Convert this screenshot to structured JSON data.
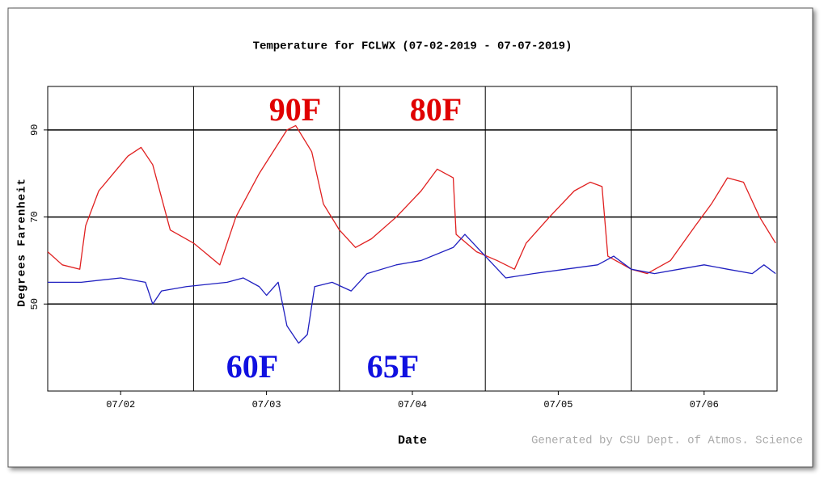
{
  "chart_data": {
    "type": "line",
    "title": "Temperature for FCLWX (07-02-2019 - 07-07-2019)",
    "y_label": "Degrees Farenheit",
    "x_label": "Date",
    "credit": "Generated by CSU Dept. of Atmos. Science",
    "xlim": [
      0,
      5
    ],
    "xticks": [
      {
        "value": 0.5,
        "label": "07/02"
      },
      {
        "value": 1.5,
        "label": "07/03"
      },
      {
        "value": 2.5,
        "label": "07/04"
      },
      {
        "value": 3.5,
        "label": "07/05"
      },
      {
        "value": 4.5,
        "label": "07/06"
      }
    ],
    "x_gridlines": [
      1,
      2,
      3,
      4
    ],
    "ylim": [
      30,
      100
    ],
    "yticks": [
      50,
      70,
      90
    ],
    "grid": true,
    "series": [
      {
        "color": "#e02020",
        "x": [
          0,
          0.1,
          0.22,
          0.26,
          0.35,
          0.45,
          0.55,
          0.64,
          0.72,
          0.84,
          1.0,
          1.18,
          1.29,
          1.45,
          1.64,
          1.7,
          1.81,
          1.89,
          2.0,
          2.11,
          2.22,
          2.39,
          2.56,
          2.67,
          2.78,
          2.8,
          2.94,
          3.08,
          3.2,
          3.28,
          3.44,
          3.61,
          3.72,
          3.8,
          3.84,
          4.0,
          4.11,
          4.27,
          4.44,
          4.55,
          4.66,
          4.77,
          4.88,
          4.99
        ],
        "values": [
          62,
          59,
          58,
          68,
          76,
          80,
          84,
          86,
          82,
          67,
          64,
          59,
          70,
          80,
          90,
          91,
          85,
          73,
          67,
          63,
          65,
          70,
          76,
          81,
          79,
          66,
          62,
          60,
          58,
          64,
          70,
          76,
          78,
          77,
          61,
          58,
          57,
          60,
          68,
          73,
          79,
          78,
          70,
          64
        ]
      },
      {
        "color": "#2020c0",
        "x": [
          0,
          0.23,
          0.5,
          0.67,
          0.72,
          0.78,
          0.95,
          1.23,
          1.34,
          1.45,
          1.5,
          1.58,
          1.64,
          1.72,
          1.78,
          1.83,
          1.95,
          2.08,
          2.19,
          2.39,
          2.56,
          2.78,
          2.86,
          3.0,
          3.14,
          3.33,
          3.55,
          3.77,
          3.88,
          4.0,
          4.16,
          4.33,
          4.5,
          4.66,
          4.83,
          4.91,
          4.99
        ],
        "values": [
          55,
          55,
          56,
          55,
          50,
          53,
          54,
          55,
          56,
          54,
          52,
          55,
          45,
          41,
          43,
          54,
          55,
          53,
          57,
          59,
          60,
          63,
          66,
          61,
          56,
          57,
          58,
          59,
          61,
          58,
          57,
          58,
          59,
          58,
          57,
          59,
          57
        ]
      }
    ],
    "annotations": [
      {
        "text": "90F",
        "color": "#e00000"
      },
      {
        "text": "80F",
        "color": "#e00000"
      },
      {
        "text": "60F",
        "color": "#1010e0"
      },
      {
        "text": "65F",
        "color": "#1010e0"
      }
    ]
  }
}
